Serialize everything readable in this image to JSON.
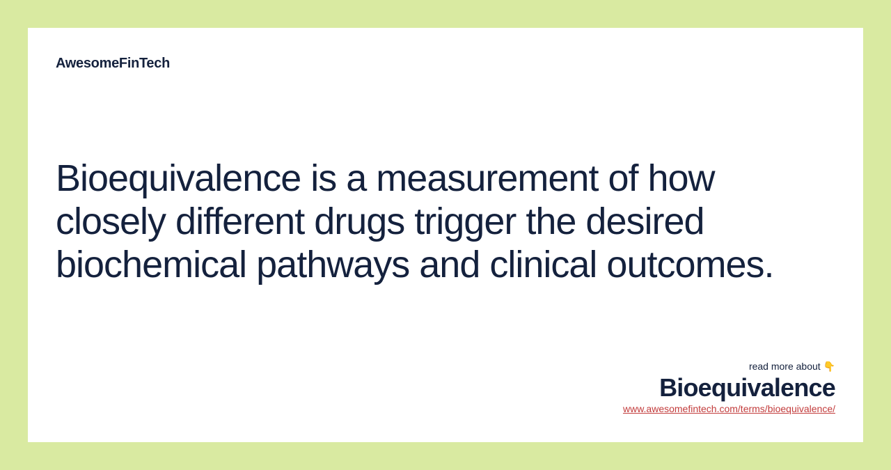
{
  "brand": "AwesomeFinTech",
  "definition": "Bioequivalence is a measurement of how closely different drugs trigger the desired biochemical pathways and clinical outcomes.",
  "footer": {
    "read_more": "read more about 👇",
    "term_name": "Bioequivalence",
    "term_url": "www.awesomefintech.com/terms/bioequivalence/"
  },
  "colors": {
    "page_bg": "#d9eaa1",
    "card_bg": "#ffffff",
    "text_primary": "#14213d",
    "link": "#c23b3b"
  }
}
